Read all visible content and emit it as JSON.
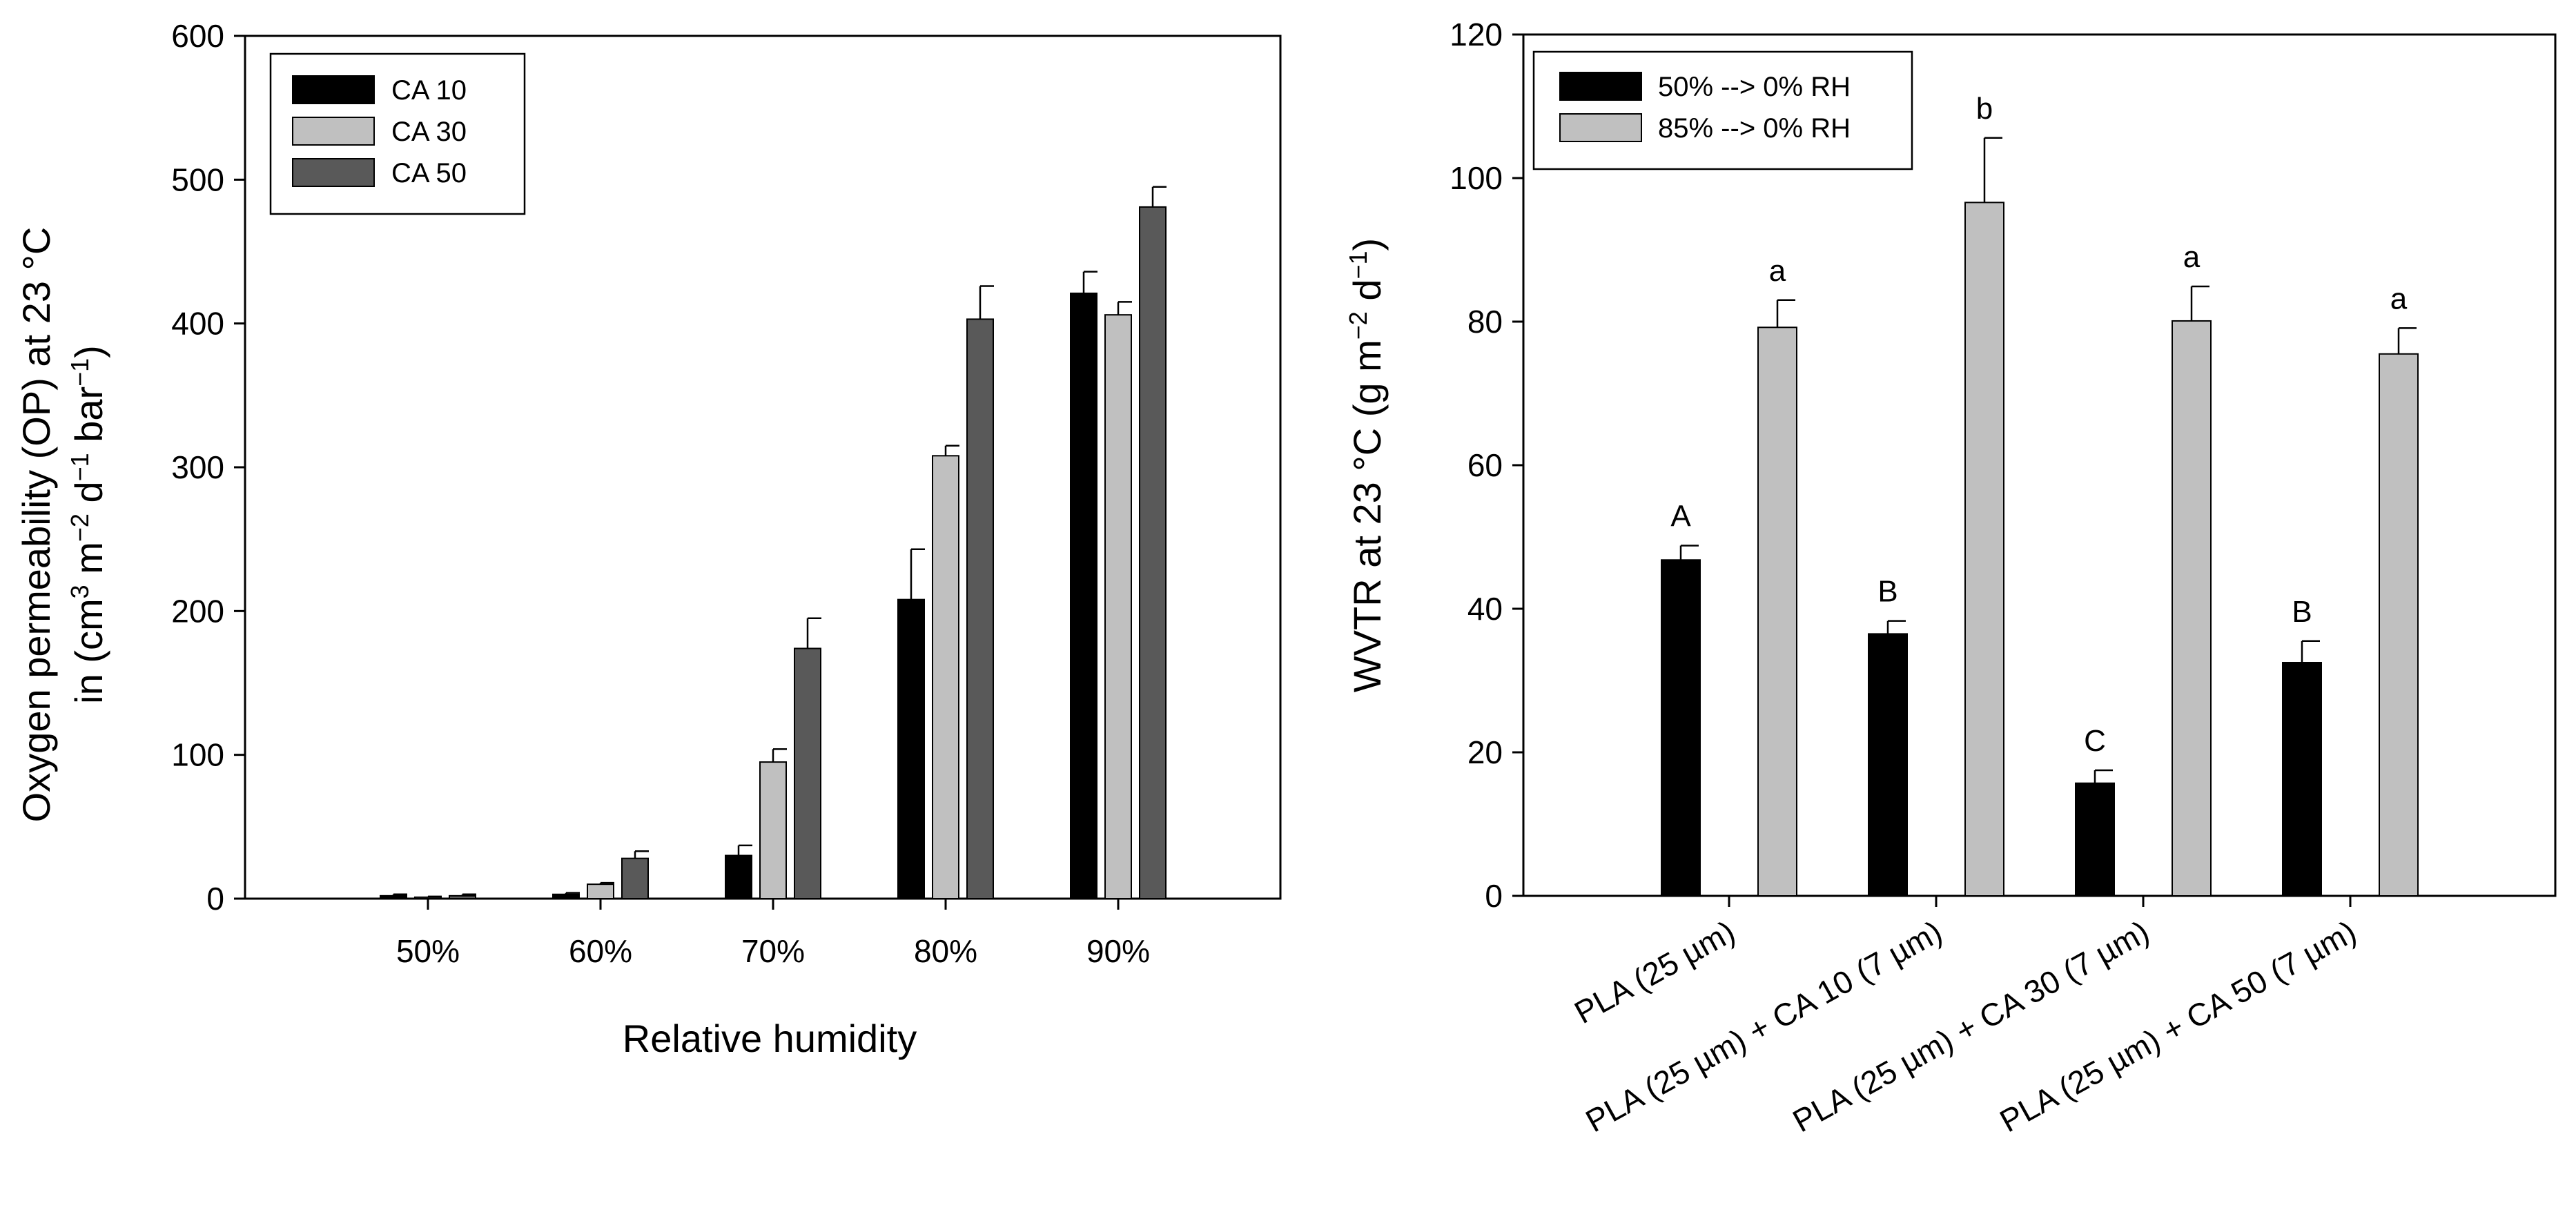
{
  "chart_data": [
    {
      "type": "bar",
      "title": "",
      "xlabel": "Relative humidity",
      "ylabel_line1": "Oxygen permeability (OP) at 23 °C",
      "ylabel_line2": "in (cm3 m−2 d−1 bar−1)",
      "ylim": [
        0,
        600
      ],
      "yticks": [
        "0",
        "100",
        "200",
        "300",
        "400",
        "500",
        "600"
      ],
      "categories": [
        "50%",
        "60%",
        "70%",
        "80%",
        "90%"
      ],
      "legend_position": "top-left",
      "series": [
        {
          "name": "CA 10",
          "color": "#000000",
          "values": [
            2,
            3,
            30,
            208,
            421
          ],
          "errors": [
            1,
            1,
            7,
            35,
            15
          ]
        },
        {
          "name": "CA 30",
          "color": "#c0c0c0",
          "values": [
            1,
            10,
            95,
            308,
            406
          ],
          "errors": [
            0.5,
            1,
            9,
            7,
            9
          ]
        },
        {
          "name": "CA 50",
          "color": "#595959",
          "values": [
            2,
            28,
            174,
            403,
            481
          ],
          "errors": [
            1,
            5,
            21,
            23,
            14
          ]
        }
      ]
    },
    {
      "type": "bar",
      "title": "",
      "xlabel": "",
      "ylabel": "WVTR at 23 °C (g m−2 d−1)",
      "ylim": [
        0,
        120
      ],
      "yticks": [
        "0",
        "20",
        "40",
        "60",
        "80",
        "100",
        "120"
      ],
      "categories": [
        "PLA (25 µm)",
        "PLA (25 µm) + CA 10 (7 µm)",
        "PLA (25 µm) + CA 30 (7 µm)",
        "PLA (25 µm) + CA 50 (7 µm)"
      ],
      "legend_position": "top-left",
      "series": [
        {
          "name": "50% --> 0% RH",
          "color": "#000000",
          "values": [
            46.8,
            36.5,
            15.7,
            32.5
          ],
          "errors": [
            2.0,
            1.8,
            1.8,
            3.0
          ],
          "letters": [
            "A",
            "B",
            "C",
            "B"
          ]
        },
        {
          "name": "85% --> 0% RH",
          "color": "#c0c0c0",
          "values": [
            79.2,
            96.6,
            80.1,
            75.5
          ],
          "errors": [
            3.8,
            9.0,
            4.8,
            3.6
          ],
          "letters": [
            "a",
            "b",
            "a",
            "a"
          ]
        }
      ]
    }
  ]
}
